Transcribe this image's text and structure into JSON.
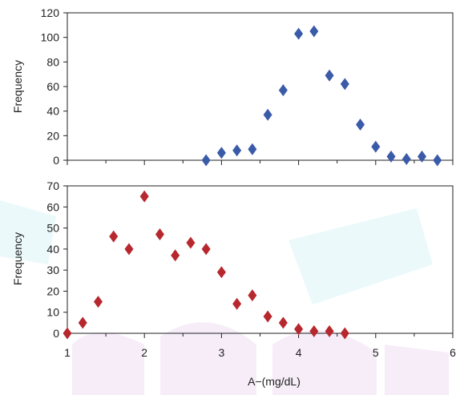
{
  "chart_data": [
    {
      "type": "scatter",
      "xlabel": "",
      "ylabel": "Frequency",
      "xlim": [
        1,
        6
      ],
      "ylim": [
        0,
        120
      ],
      "y_ticks": [
        "0",
        "20",
        "40",
        "60",
        "80",
        "100",
        "120"
      ],
      "grid": false,
      "marker_color": "#3A5BA8",
      "points": [
        {
          "x": 2.8,
          "y": 0
        },
        {
          "x": 3.0,
          "y": 6
        },
        {
          "x": 3.2,
          "y": 8
        },
        {
          "x": 3.4,
          "y": 9
        },
        {
          "x": 3.6,
          "y": 37
        },
        {
          "x": 3.8,
          "y": 57
        },
        {
          "x": 4.0,
          "y": 103
        },
        {
          "x": 4.2,
          "y": 105
        },
        {
          "x": 4.4,
          "y": 69
        },
        {
          "x": 4.6,
          "y": 62
        },
        {
          "x": 4.8,
          "y": 29
        },
        {
          "x": 5.0,
          "y": 11
        },
        {
          "x": 5.2,
          "y": 3
        },
        {
          "x": 5.4,
          "y": 1
        },
        {
          "x": 5.6,
          "y": 3
        },
        {
          "x": 5.8,
          "y": 0
        }
      ]
    },
    {
      "type": "scatter",
      "xlabel": "A−(mg/dL)",
      "ylabel": "Frequency",
      "xlim": [
        1,
        6
      ],
      "ylim": [
        0,
        70
      ],
      "x_ticks": [
        "1",
        "2",
        "3",
        "4",
        "5",
        "6"
      ],
      "y_ticks": [
        "0",
        "10",
        "20",
        "30",
        "40",
        "50",
        "60",
        "70"
      ],
      "grid": false,
      "marker_color": "#B7282E",
      "points": [
        {
          "x": 1.0,
          "y": 0
        },
        {
          "x": 1.2,
          "y": 5
        },
        {
          "x": 1.4,
          "y": 15
        },
        {
          "x": 1.6,
          "y": 46
        },
        {
          "x": 1.8,
          "y": 40
        },
        {
          "x": 2.0,
          "y": 65
        },
        {
          "x": 2.2,
          "y": 47
        },
        {
          "x": 2.4,
          "y": 37
        },
        {
          "x": 2.6,
          "y": 43
        },
        {
          "x": 2.8,
          "y": 40
        },
        {
          "x": 3.0,
          "y": 29
        },
        {
          "x": 3.2,
          "y": 14
        },
        {
          "x": 3.4,
          "y": 18
        },
        {
          "x": 3.6,
          "y": 8
        },
        {
          "x": 3.8,
          "y": 5
        },
        {
          "x": 4.0,
          "y": 2
        },
        {
          "x": 4.2,
          "y": 1
        },
        {
          "x": 4.4,
          "y": 1
        },
        {
          "x": 4.6,
          "y": 0
        }
      ]
    }
  ]
}
